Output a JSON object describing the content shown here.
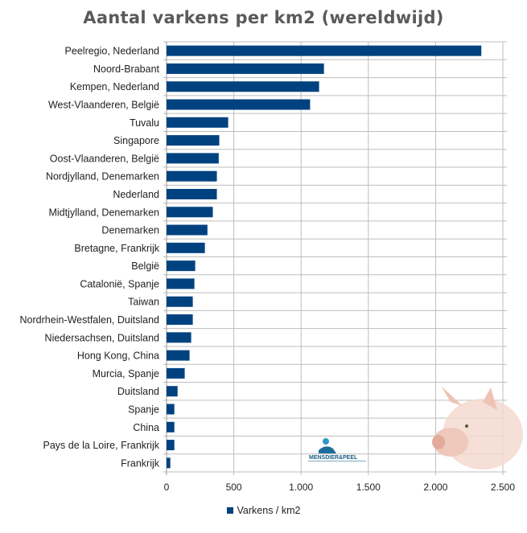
{
  "chart_data": {
    "type": "bar",
    "orientation": "horizontal",
    "title": "Aantal varkens per km2 (wereldwijd)",
    "categories": [
      "Peelregio, Nederland",
      "Noord-Brabant",
      "Kempen, Nederland",
      "West-Vlaanderen, België",
      "Tuvalu",
      "Singapore",
      "Oost-Vlaanderen, België",
      "Nordjylland, Denemarken",
      "Nederland",
      "Midtjylland, Denemarken",
      "Denemarken",
      "Bretagne, Frankrijk",
      "België",
      "Catalonië, Spanje",
      "Taiwan",
      "Nordrhein-Westfalen, Duitsland",
      "Niedersachsen, Duitsland",
      "Hong Kong, China",
      "Murcia, Spanje",
      "Duitsland",
      "Spanje",
      "China",
      "Pays de la Loire, Frankrijk",
      "Frankrijk"
    ],
    "series": [
      {
        "name": "Varkens / km2",
        "values": [
          2340,
          1170,
          1134,
          1067,
          458,
          392,
          388,
          374,
          374,
          344,
          304,
          285,
          213,
          207,
          195,
          195,
          183,
          171,
          135,
          82,
          58,
          58,
          58,
          28
        ],
        "color": "#00427f"
      }
    ],
    "xlim": [
      0,
      2500
    ],
    "xticks": [
      0,
      500,
      1000,
      1500,
      2000,
      2500
    ],
    "xtick_labels": [
      "0",
      "500",
      "1.000",
      "1.500",
      "2.000",
      "2.500"
    ],
    "grid": true,
    "legend_position": "bottom"
  },
  "logo": {
    "text": "MENSDIER&PEEL"
  }
}
